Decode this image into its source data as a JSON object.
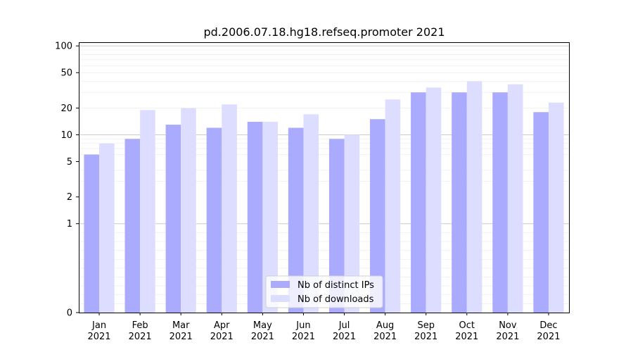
{
  "chart_data": {
    "type": "bar",
    "title": "pd.2006.07.18.hg18.refseq.promoter 2021",
    "xlabel": "",
    "ylabel": "",
    "y_scale": "symlog",
    "ylim": [
      0,
      110
    ],
    "y_ticks": [
      0,
      1,
      2,
      5,
      10,
      20,
      50,
      100
    ],
    "categories": [
      [
        "Jan",
        "2021"
      ],
      [
        "Feb",
        "2021"
      ],
      [
        "Mar",
        "2021"
      ],
      [
        "Apr",
        "2021"
      ],
      [
        "May",
        "2021"
      ],
      [
        "Jun",
        "2021"
      ],
      [
        "Jul",
        "2021"
      ],
      [
        "Aug",
        "2021"
      ],
      [
        "Sep",
        "2021"
      ],
      [
        "Oct",
        "2021"
      ],
      [
        "Nov",
        "2021"
      ],
      [
        "Dec",
        "2021"
      ]
    ],
    "series": [
      {
        "name": "Nb of distinct IPs",
        "color": "#aaaaff",
        "values": [
          6,
          9,
          13,
          12,
          14,
          12,
          9,
          15,
          30,
          30,
          30,
          18
        ]
      },
      {
        "name": "Nb of downloads",
        "color": "#ddddff",
        "values": [
          8,
          19,
          20,
          22,
          14,
          17,
          10,
          25,
          34,
          40,
          37,
          23
        ]
      }
    ],
    "legend_position": "bottom-center",
    "grid": true
  }
}
